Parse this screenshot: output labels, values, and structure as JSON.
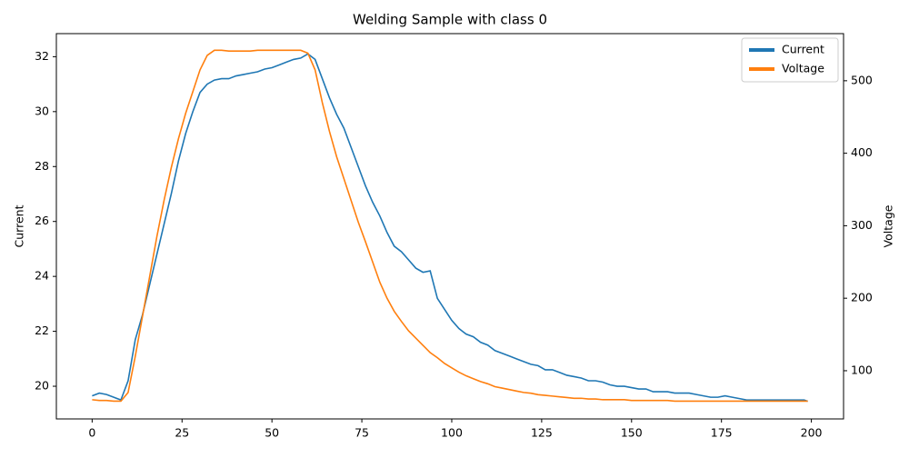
{
  "chart_data": {
    "type": "line",
    "title": "Welding Sample with class 0",
    "ylabel": "Current",
    "y2label": "Voltage",
    "x": [
      0,
      2,
      4,
      6,
      8,
      10,
      12,
      14,
      16,
      18,
      20,
      22,
      24,
      26,
      28,
      30,
      32,
      34,
      36,
      38,
      40,
      42,
      44,
      46,
      48,
      50,
      52,
      54,
      56,
      58,
      60,
      62,
      64,
      66,
      68,
      70,
      72,
      74,
      76,
      78,
      80,
      82,
      84,
      86,
      88,
      90,
      92,
      94,
      96,
      98,
      100,
      102,
      104,
      106,
      108,
      110,
      112,
      114,
      116,
      118,
      120,
      122,
      124,
      126,
      128,
      130,
      132,
      134,
      136,
      138,
      140,
      142,
      144,
      146,
      148,
      150,
      152,
      154,
      156,
      158,
      160,
      162,
      164,
      166,
      168,
      170,
      172,
      174,
      176,
      178,
      180,
      182,
      184,
      186,
      188,
      190,
      192,
      194,
      196,
      198,
      199
    ],
    "series": [
      {
        "name": "Current",
        "color": "#1f77b4",
        "axis": "y",
        "values": [
          19.65,
          19.75,
          19.7,
          19.6,
          19.5,
          20.2,
          21.7,
          22.6,
          23.7,
          24.8,
          25.9,
          27.0,
          28.2,
          29.2,
          30.0,
          30.7,
          31.0,
          31.15,
          31.2,
          31.2,
          31.3,
          31.35,
          31.4,
          31.45,
          31.55,
          31.6,
          31.7,
          31.8,
          31.9,
          31.95,
          32.1,
          31.9,
          31.2,
          30.5,
          29.9,
          29.4,
          28.7,
          28.0,
          27.3,
          26.7,
          26.2,
          25.6,
          25.1,
          24.9,
          24.6,
          24.3,
          24.15,
          24.2,
          23.2,
          22.8,
          22.4,
          22.1,
          21.9,
          21.8,
          21.6,
          21.5,
          21.3,
          21.2,
          21.1,
          21.0,
          20.9,
          20.8,
          20.75,
          20.6,
          20.6,
          20.5,
          20.4,
          20.35,
          20.3,
          20.2,
          20.2,
          20.15,
          20.05,
          20.0,
          20.0,
          19.95,
          19.9,
          19.9,
          19.8,
          19.8,
          19.8,
          19.75,
          19.75,
          19.75,
          19.7,
          19.65,
          19.6,
          19.6,
          19.65,
          19.6,
          19.55,
          19.5,
          19.5,
          19.5,
          19.5,
          19.5,
          19.5,
          19.5,
          19.5,
          19.5,
          19.45
        ]
      },
      {
        "name": "Voltage",
        "color": "#ff7f0e",
        "axis": "y2",
        "values": [
          60,
          59,
          59,
          58,
          58,
          70,
          120,
          175,
          230,
          285,
          335,
          380,
          420,
          455,
          485,
          515,
          535,
          542,
          542,
          541,
          541,
          541,
          541,
          542,
          542,
          542,
          542,
          542,
          542,
          542,
          538,
          515,
          470,
          430,
          395,
          365,
          335,
          305,
          278,
          250,
          222,
          200,
          182,
          168,
          155,
          145,
          135,
          125,
          118,
          110,
          104,
          98,
          93,
          89,
          85,
          82,
          78,
          76,
          74,
          72,
          70,
          69,
          67,
          66,
          65,
          64,
          63,
          62,
          62,
          61,
          61,
          60,
          60,
          60,
          60,
          59,
          59,
          59,
          59,
          59,
          59,
          58,
          58,
          58,
          58,
          58,
          58,
          58,
          58,
          58,
          58,
          58,
          58,
          58,
          58,
          58,
          58,
          58,
          58,
          58,
          58
        ]
      }
    ],
    "xlim": [
      -9.95,
      208.95
    ],
    "xticks": [
      0,
      25,
      50,
      75,
      100,
      125,
      150,
      175,
      200
    ],
    "ylim": [
      18.81,
      32.84
    ],
    "yticks": [
      20,
      22,
      24,
      26,
      28,
      30,
      32
    ],
    "y2lim": [
      33.5,
      565
    ],
    "y2ticks": [
      100,
      200,
      300,
      400,
      500
    ],
    "legend": "upper right"
  }
}
